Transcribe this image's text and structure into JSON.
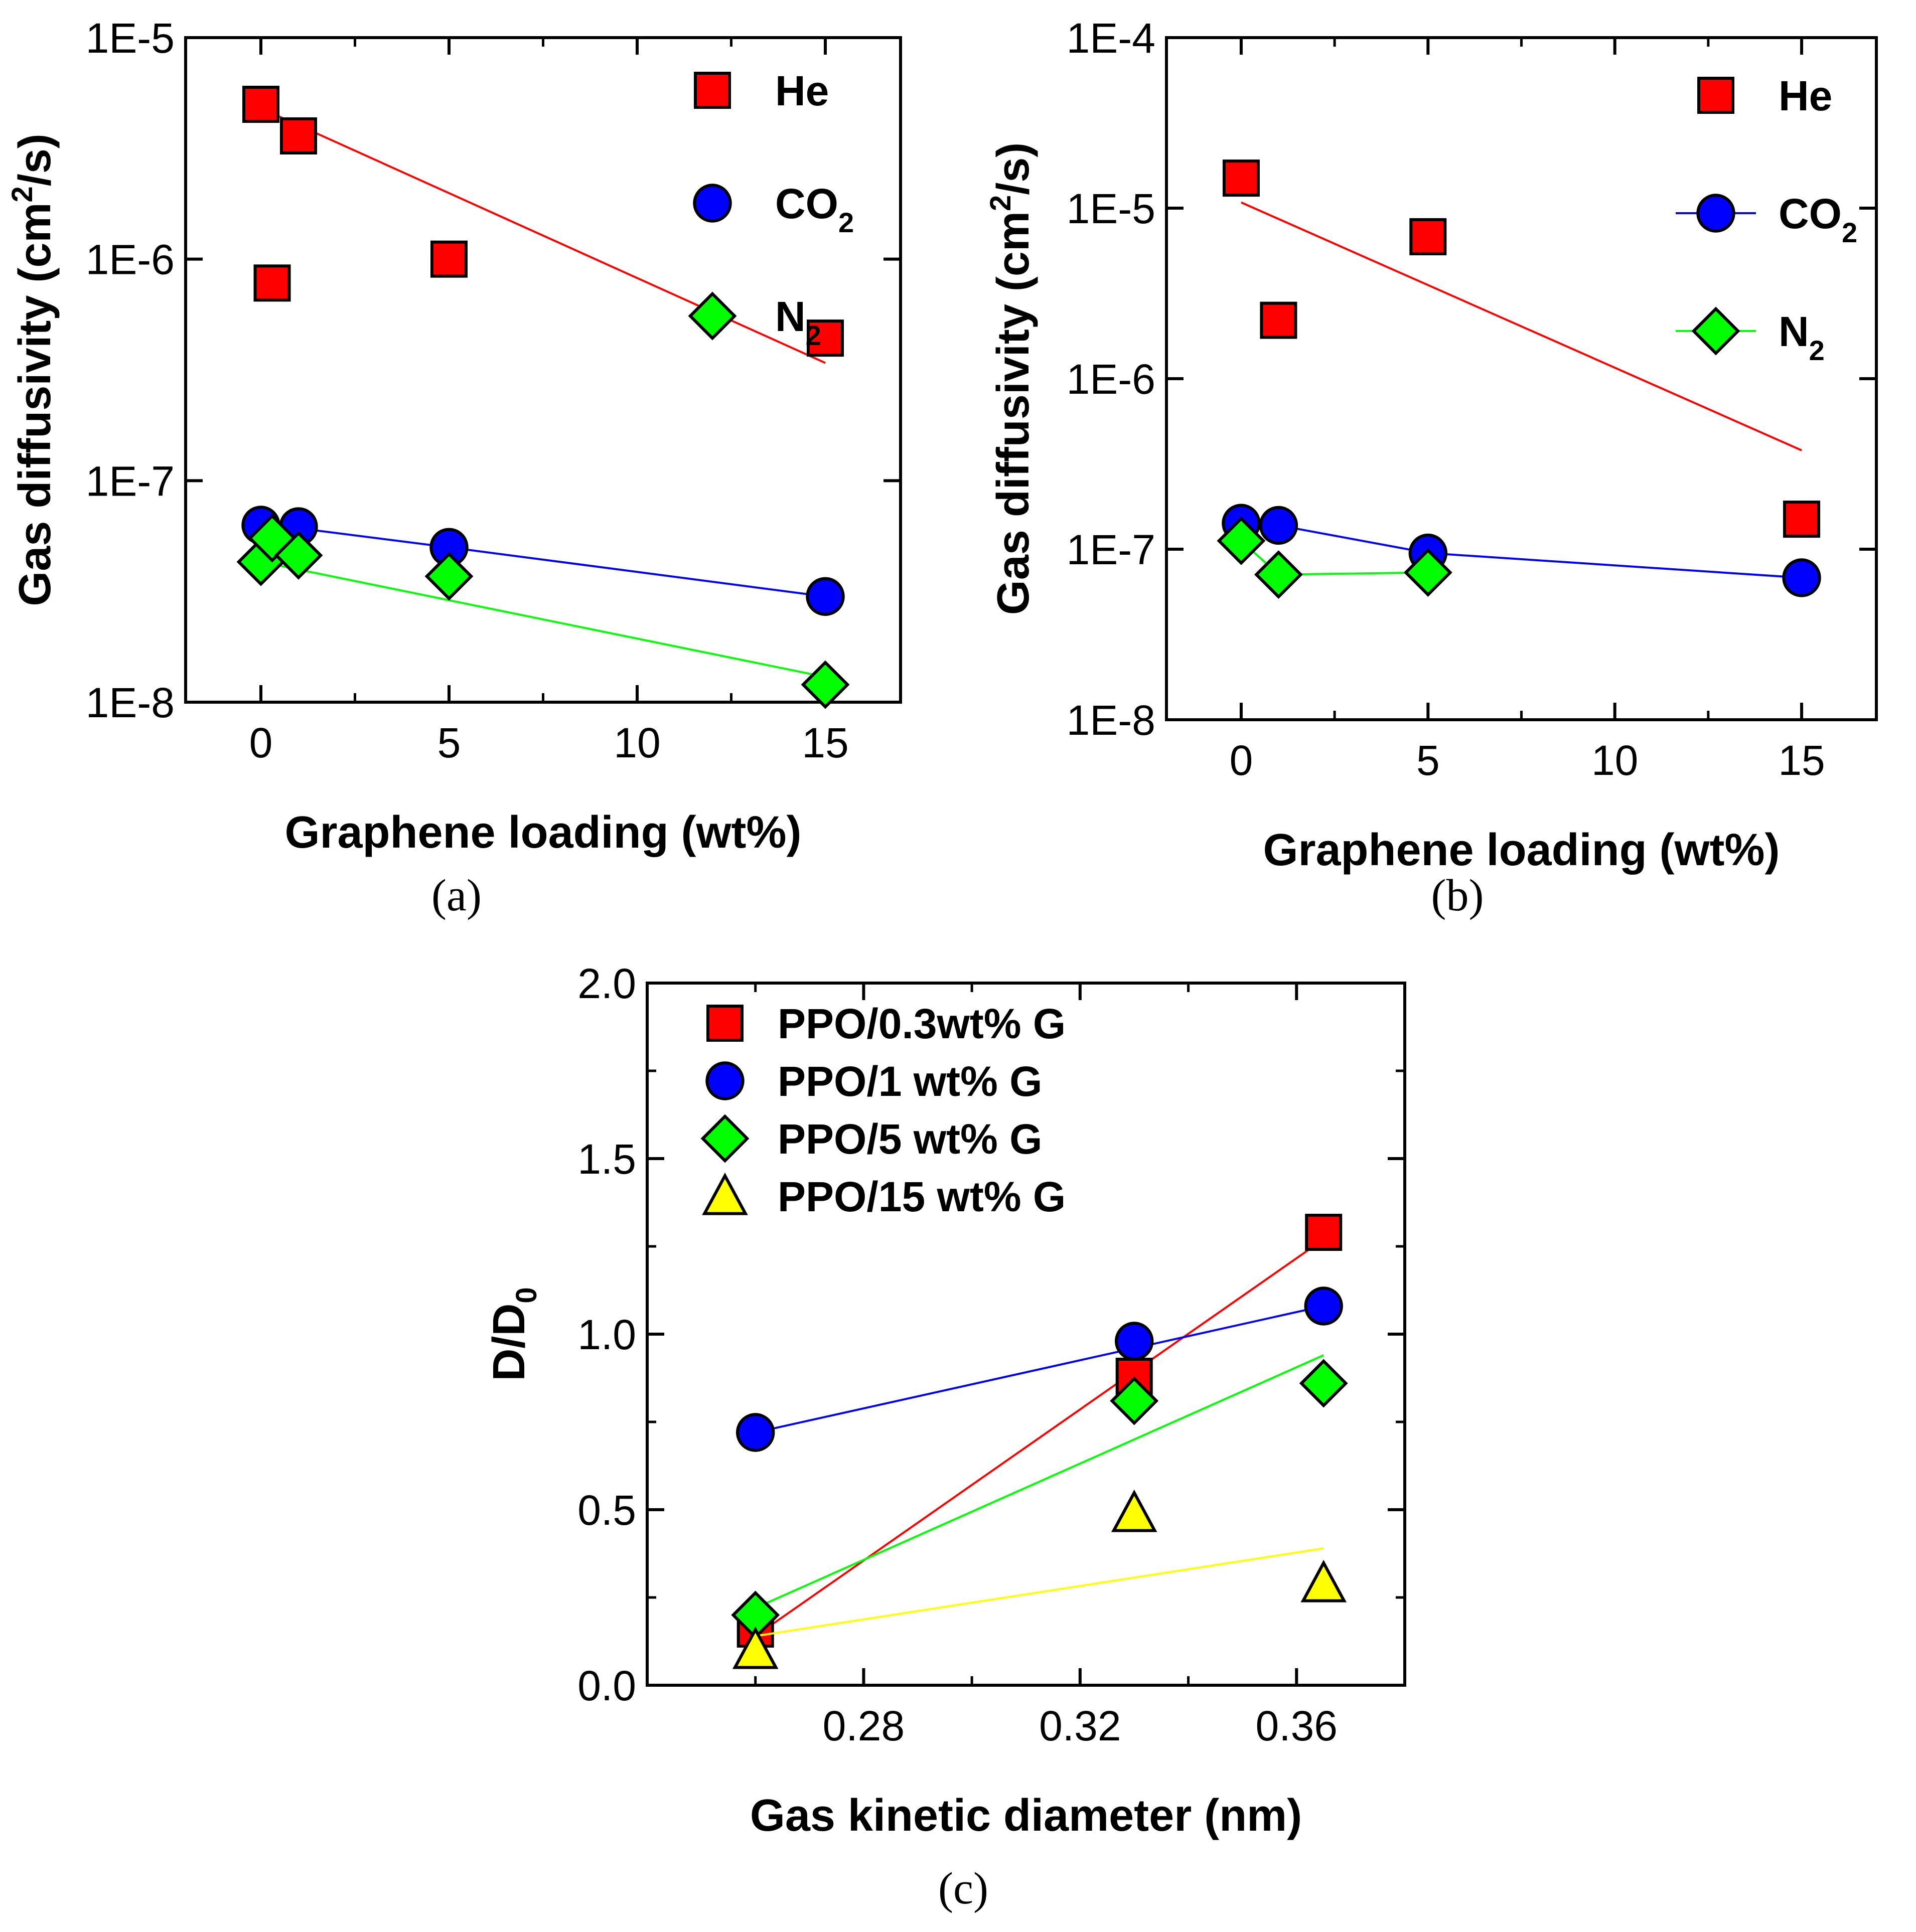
{
  "chart_data": [
    {
      "type": "scatter",
      "panel_label": "(a)",
      "xlabel": "Graphene loading (wt%)",
      "ylabel": "Gas diffusivity (cm2/s)",
      "ylabel_parts": [
        "Gas diffusivity (cm",
        "2",
        "/s)"
      ],
      "xlim": [
        -2,
        17
      ],
      "ylim": [
        1e-08,
        1e-05
      ],
      "yscale": "log",
      "xticks": [
        0,
        5,
        10,
        15
      ],
      "xtick_labels": [
        "0",
        "5",
        "10",
        "15"
      ],
      "yticks": [
        1e-08,
        1e-07,
        1e-06,
        1e-05
      ],
      "ytick_labels": [
        "1E-8",
        "1E-7",
        "1E-6",
        "1E-5"
      ],
      "grid": false,
      "legend_position": "top-right",
      "series": [
        {
          "name": "He",
          "label_main": "He",
          "label_sub": "",
          "marker": "square",
          "color": "#ff0000",
          "points": [
            [
              0,
              5e-06
            ],
            [
              0.3,
              7.8e-07
            ],
            [
              1,
              3.6e-06
            ],
            [
              5,
              1e-06
            ],
            [
              15,
              4.4e-07
            ]
          ],
          "fit": [
            [
              0,
              4.8e-06
            ],
            [
              15,
              3.4e-07
            ]
          ],
          "legend_line": false
        },
        {
          "name": "CO2",
          "label_main": "CO",
          "label_sub": "2",
          "marker": "circle",
          "color": "#0000ff",
          "points": [
            [
              0,
              6.3e-08
            ],
            [
              1,
              6.2e-08
            ],
            [
              5,
              5e-08
            ],
            [
              15,
              3e-08
            ]
          ],
          "fit": [
            [
              0,
              6.3e-08
            ],
            [
              1,
              6.1e-08
            ],
            [
              5,
              5e-08
            ],
            [
              15,
              3e-08
            ]
          ],
          "legend_line": false
        },
        {
          "name": "N2",
          "label_main": "N",
          "label_sub": "2",
          "marker": "diamond",
          "color": "#00ff00",
          "points": [
            [
              0,
              4.3e-08
            ],
            [
              0.3,
              5.5e-08
            ],
            [
              1,
              4.6e-08
            ],
            [
              5,
              3.7e-08
            ],
            [
              15,
              1.2e-08
            ]
          ],
          "fit": [
            [
              0,
              4.3e-08
            ],
            [
              15,
              1.3e-08
            ]
          ],
          "legend_line": false
        }
      ]
    },
    {
      "type": "scatter",
      "panel_label": "(b)",
      "xlabel": "Graphene loading (wt%)",
      "ylabel": "Gas diffusivity (cm2/s)",
      "ylabel_parts": [
        "Gas diffusivity (cm",
        "2",
        "/s)"
      ],
      "xlim": [
        -2,
        17
      ],
      "ylim": [
        1e-08,
        0.0001
      ],
      "yscale": "log",
      "xticks": [
        0,
        5,
        10,
        15
      ],
      "xtick_labels": [
        "0",
        "5",
        "10",
        "15"
      ],
      "yticks": [
        1e-08,
        1e-07,
        1e-06,
        1e-05,
        0.0001
      ],
      "ytick_labels": [
        "1E-8",
        "1E-7",
        "1E-6",
        "1E-5",
        "1E-4"
      ],
      "grid": false,
      "legend_position": "top-right",
      "series": [
        {
          "name": "He",
          "label_main": "He",
          "label_sub": "",
          "marker": "square",
          "color": "#ff0000",
          "points": [
            [
              0,
              1.5e-05
            ],
            [
              1,
              2.2e-06
            ],
            [
              5,
              6.8e-06
            ],
            [
              15,
              1.5e-07
            ]
          ],
          "fit": [
            [
              0,
              1.08e-05
            ],
            [
              15,
              3.8e-07
            ]
          ],
          "legend_line": false
        },
        {
          "name": "CO2",
          "label_main": "CO",
          "label_sub": "2",
          "marker": "circle",
          "color": "#0000ff",
          "points": [
            [
              0,
              1.42e-07
            ],
            [
              1,
              1.38e-07
            ],
            [
              5,
              9.5e-08
            ],
            [
              15,
              6.8e-08
            ]
          ],
          "fit": [
            [
              0,
              1.42e-07
            ],
            [
              1,
              1.38e-07
            ],
            [
              5,
              9.5e-08
            ],
            [
              15,
              6.8e-08
            ]
          ],
          "legend_line": true
        },
        {
          "name": "N2",
          "label_main": "N",
          "label_sub": "2",
          "marker": "diamond",
          "color": "#00ff00",
          "points": [
            [
              0,
              1.12e-07
            ],
            [
              1,
              7.1e-08
            ],
            [
              5,
              7.3e-08
            ]
          ],
          "fit": [
            [
              0,
              1.12e-07
            ],
            [
              1,
              7.1e-08
            ],
            [
              5,
              7.3e-08
            ]
          ],
          "legend_line": true
        }
      ]
    },
    {
      "type": "scatter",
      "panel_label": "(c)",
      "xlabel": "Gas kinetic diameter (nm)",
      "ylabel": "D/D0",
      "ylabel_parts": [
        "D/D",
        "0",
        ""
      ],
      "xlim": [
        0.24,
        0.38
      ],
      "ylim": [
        0.0,
        2.0
      ],
      "yscale": "linear",
      "xticks": [
        0.28,
        0.32,
        0.36
      ],
      "xtick_labels": [
        "0.28",
        "0.32",
        "0.36"
      ],
      "yticks": [
        0.0,
        0.5,
        1.0,
        1.5,
        2.0
      ],
      "ytick_labels": [
        "0.0",
        "0.5",
        "1.0",
        "1.5",
        "2.0"
      ],
      "grid": false,
      "legend_position": "top-left",
      "series": [
        {
          "name": "PPO/0.3wt% G",
          "label_main": "PPO/0.3wt% G",
          "label_sub": "",
          "marker": "square",
          "color": "#ff0000",
          "points": [
            [
              0.26,
              0.16
            ],
            [
              0.33,
              0.88
            ],
            [
              0.365,
              1.29
            ]
          ],
          "fit": [
            [
              0.26,
              0.14
            ],
            [
              0.365,
              1.27
            ]
          ],
          "legend_line": false
        },
        {
          "name": "PPO/1 wt% G",
          "label_main": "PPO/1 wt% G",
          "label_sub": "",
          "marker": "circle",
          "color": "#0000ff",
          "points": [
            [
              0.26,
              0.72
            ],
            [
              0.33,
              0.98
            ],
            [
              0.365,
              1.08
            ]
          ],
          "fit": [
            [
              0.26,
              0.72
            ],
            [
              0.365,
              1.08
            ]
          ],
          "legend_line": false
        },
        {
          "name": "PPO/5 wt% G",
          "label_main": "PPO/5 wt% G",
          "label_sub": "",
          "marker": "diamond",
          "color": "#00ff00",
          "points": [
            [
              0.26,
              0.2
            ],
            [
              0.33,
              0.81
            ],
            [
              0.365,
              0.86
            ]
          ],
          "fit": [
            [
              0.26,
              0.22
            ],
            [
              0.365,
              0.94
            ]
          ],
          "legend_line": false
        },
        {
          "name": "PPO/15 wt% G",
          "label_main": "PPO/15 wt% G",
          "label_sub": "",
          "marker": "triangle",
          "color": "#ffff00",
          "points": [
            [
              0.26,
              0.1
            ],
            [
              0.33,
              0.49
            ],
            [
              0.365,
              0.29
            ]
          ],
          "fit": [
            [
              0.26,
              0.14
            ],
            [
              0.365,
              0.39
            ]
          ],
          "legend_line": false
        }
      ]
    }
  ]
}
